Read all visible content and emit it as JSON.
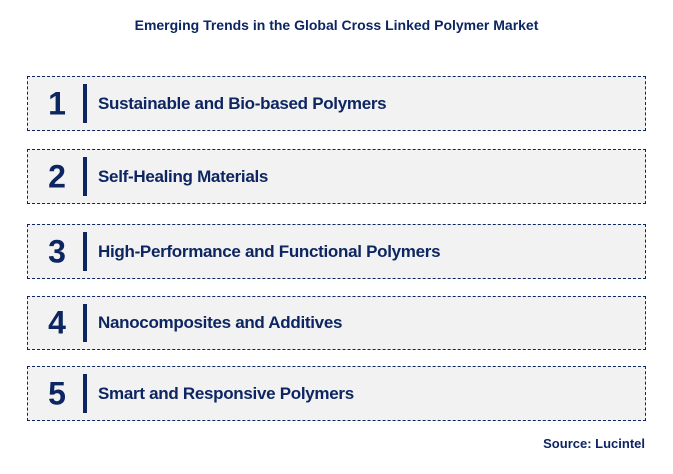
{
  "title": "Emerging Trends in the Global Cross Linked Polymer Market",
  "items": [
    {
      "number": "1",
      "label": "Sustainable and Bio-based Polymers"
    },
    {
      "number": "2",
      "label": "Self-Healing Materials"
    },
    {
      "number": "3",
      "label": "High-Performance and Functional Polymers"
    },
    {
      "number": "4",
      "label": "Nanocomposites and Additives"
    },
    {
      "number": "5",
      "label": "Smart and Responsive Polymers"
    }
  ],
  "source": "Source: Lucintel",
  "colors": {
    "primary": "#0d2561",
    "box_bg": "#f2f2f2"
  }
}
